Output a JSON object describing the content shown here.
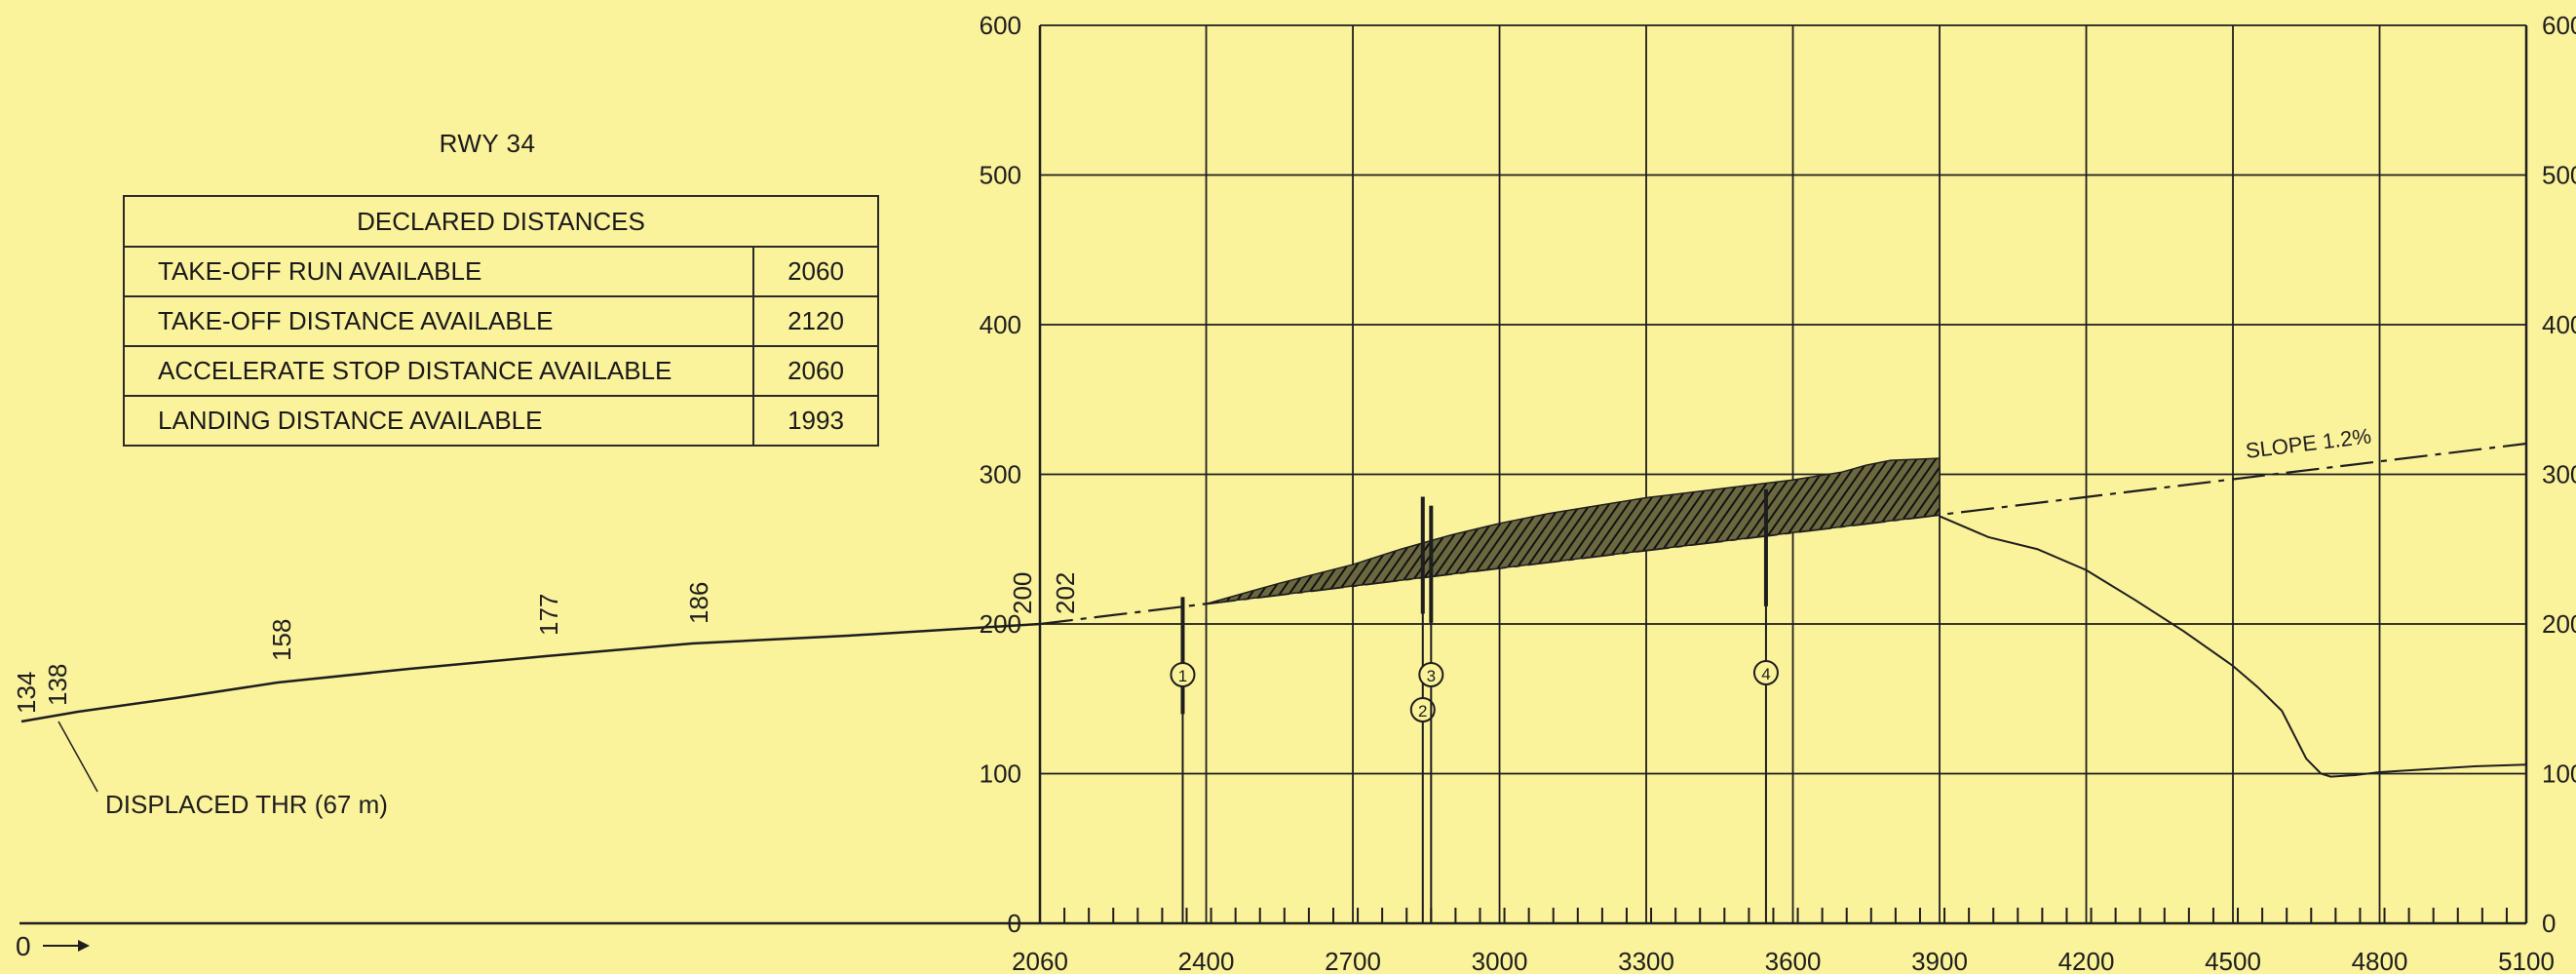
{
  "runway": "RWY 34",
  "declared_distances": {
    "header": "DECLARED DISTANCES",
    "rows": [
      {
        "label": "TAKE-OFF RUN AVAILABLE",
        "value": "2060"
      },
      {
        "label": "TAKE-OFF DISTANCE AVAILABLE",
        "value": "2120"
      },
      {
        "label": "ACCELERATE STOP DISTANCE AVAILABLE",
        "value": "2060"
      },
      {
        "label": "LANDING DISTANCE AVAILABLE",
        "value": "1993"
      }
    ]
  },
  "chart_data": {
    "type": "line",
    "x_ticks": [
      "2060",
      "2400",
      "2700",
      "3000",
      "3300",
      "3600",
      "3900",
      "4200",
      "4500",
      "4800",
      "5100"
    ],
    "x_tick_values": [
      2060,
      2400,
      2700,
      3000,
      3300,
      3600,
      3900,
      4200,
      4500,
      4800,
      5100
    ],
    "y_ticks": [
      "0",
      "100",
      "200",
      "300",
      "400",
      "500",
      "600"
    ],
    "y_tick_values": [
      0,
      100,
      200,
      300,
      400,
      500,
      600
    ],
    "origin_label": "0",
    "runway_chainage_labels": [
      "134",
      "138",
      "158",
      "177",
      "186",
      "200",
      "202"
    ],
    "displaced_threshold_label": "DISPLACED THR (67 m)",
    "slope_label": "SLOPE 1.2%",
    "terrain_profile": {
      "x": [
        3900,
        4000,
        4100,
        4200,
        4300,
        4400,
        4500,
        4550,
        4600,
        4650,
        4680,
        4700,
        4750,
        4800,
        4900,
        5000,
        5100
      ],
      "y": [
        272,
        258,
        250,
        236,
        216,
        195,
        172,
        158,
        142,
        110,
        100,
        98,
        99,
        101,
        103,
        105,
        106
      ]
    },
    "terrain_fill": {
      "x": [
        2400,
        2550,
        2700,
        2800,
        2900,
        3000,
        3100,
        3200,
        3300,
        3400,
        3500,
        3600,
        3700,
        3750,
        3800,
        3850,
        3900
      ],
      "y": [
        0,
        12,
        22,
        32,
        40,
        46,
        50,
        52,
        54,
        54,
        54,
        54,
        56,
        60,
        62,
        60,
        58
      ]
    },
    "obstacles": [
      {
        "id": "1",
        "x": 2352,
        "top": 218
      },
      {
        "id": "2",
        "x": 2843,
        "top": 285
      },
      {
        "id": "3",
        "x": 2860,
        "top": 279
      },
      {
        "id": "4",
        "x": 3545,
        "top": 290
      }
    ]
  }
}
